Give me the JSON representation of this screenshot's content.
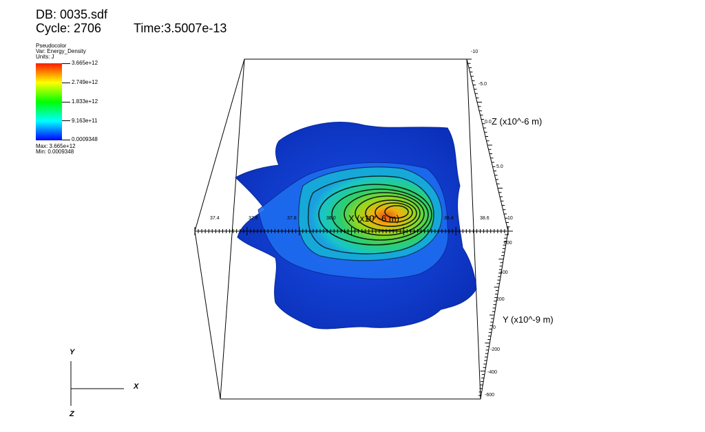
{
  "header": {
    "db": "DB: 0035.sdf",
    "cycle": "Cycle: 2706",
    "time": "Time:3.5007e-13"
  },
  "legend": {
    "plot_type": "Pseudocolor",
    "var": "Var: Energy_Density",
    "units": "Units: J",
    "ticks": [
      "3.665e+12",
      "2.749e+12",
      "1.833e+12",
      "9.163e+11",
      "0.0009348"
    ],
    "max": "Max:  3.665e+12",
    "min": "Min:  0.0009348",
    "colors": [
      "#ff1a00",
      "#ffff00",
      "#00ff00",
      "#00ffff",
      "#0000ff"
    ]
  },
  "chart_data": {
    "type": "pseudocolor-3d-contour",
    "axes": {
      "x": {
        "title": "X (x10^-6 m)",
        "ticks": [
          "37.4",
          "37.6",
          "37.8",
          "38.0",
          "38.2",
          "38.4",
          "38.6"
        ]
      },
      "y": {
        "title": "Y (x10^-9 m)",
        "ticks": [
          "600",
          "400",
          "200",
          "0",
          "-200",
          "-400",
          "-600"
        ]
      },
      "z": {
        "title": "Z (x10^-6 m)",
        "ticks": [
          "-10",
          "-5.0",
          "0.0",
          "5.0",
          "10"
        ]
      }
    },
    "color_scale": {
      "min": 0.0009348,
      "max": 3665000000000.0
    },
    "peak_color": "#e85010"
  },
  "triad": {
    "y": "Y",
    "x": "X",
    "z": "Z"
  }
}
